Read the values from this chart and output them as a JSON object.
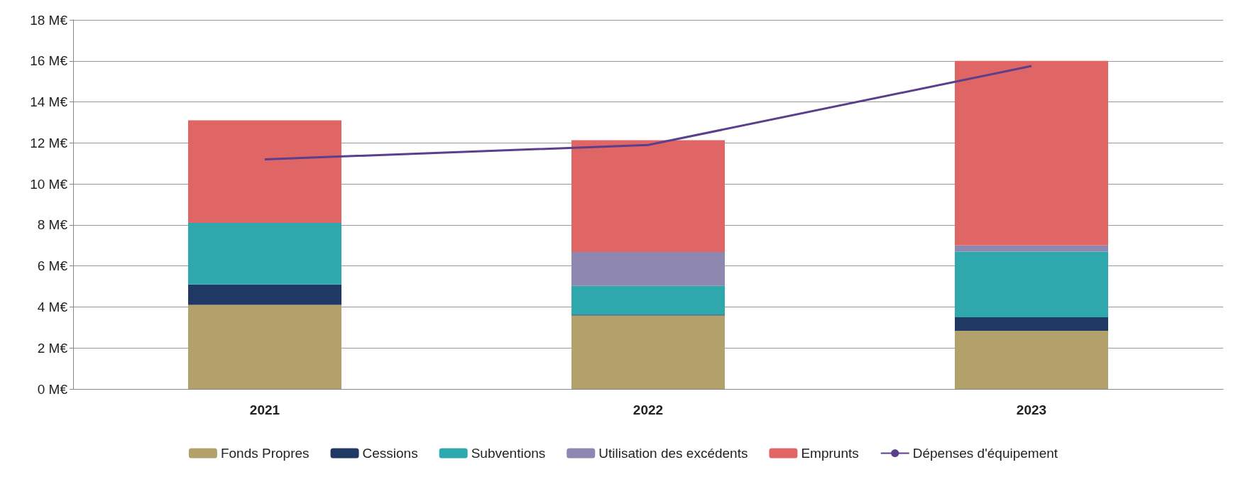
{
  "chart_data": {
    "type": "bar",
    "stacked": true,
    "categories": [
      "2021",
      "2022",
      "2023"
    ],
    "series": [
      {
        "name": "Fonds Propres",
        "color": "#b3a16c",
        "values": [
          4.1,
          3.58,
          2.84
        ]
      },
      {
        "name": "Cessions",
        "color": "#1f3864",
        "values": [
          1.0,
          0.05,
          0.66
        ]
      },
      {
        "name": "Subventions",
        "color": "#2fa8ad",
        "values": [
          3.0,
          1.4,
          3.2
        ]
      },
      {
        "name": "Utilisation des excédents",
        "color": "#8e88b0",
        "values": [
          null,
          1.65,
          0.3
        ]
      },
      {
        "name": "Emprunts",
        "color": "#e06666",
        "values": [
          5.0,
          5.45,
          9.0
        ]
      },
      {
        "name": "Dépenses d'équipement",
        "type": "line",
        "color": "#5b3f8c",
        "values": [
          11.2,
          11.9,
          15.75
        ]
      }
    ],
    "ylim": [
      0,
      18
    ],
    "yticks": [
      {
        "value": 0,
        "label": "0 M€"
      },
      {
        "value": 2,
        "label": "2 M€"
      },
      {
        "value": 4,
        "label": "4 M€"
      },
      {
        "value": 6,
        "label": "6 M€"
      },
      {
        "value": 8,
        "label": "8 M€"
      },
      {
        "value": 10,
        "label": "10 M€"
      },
      {
        "value": 12,
        "label": "12 M€"
      },
      {
        "value": 14,
        "label": "14 M€"
      },
      {
        "value": 16,
        "label": "16 M€"
      },
      {
        "value": 18,
        "label": "18 M€"
      }
    ],
    "grid": "y",
    "legend": "bottom",
    "marker": "none"
  }
}
